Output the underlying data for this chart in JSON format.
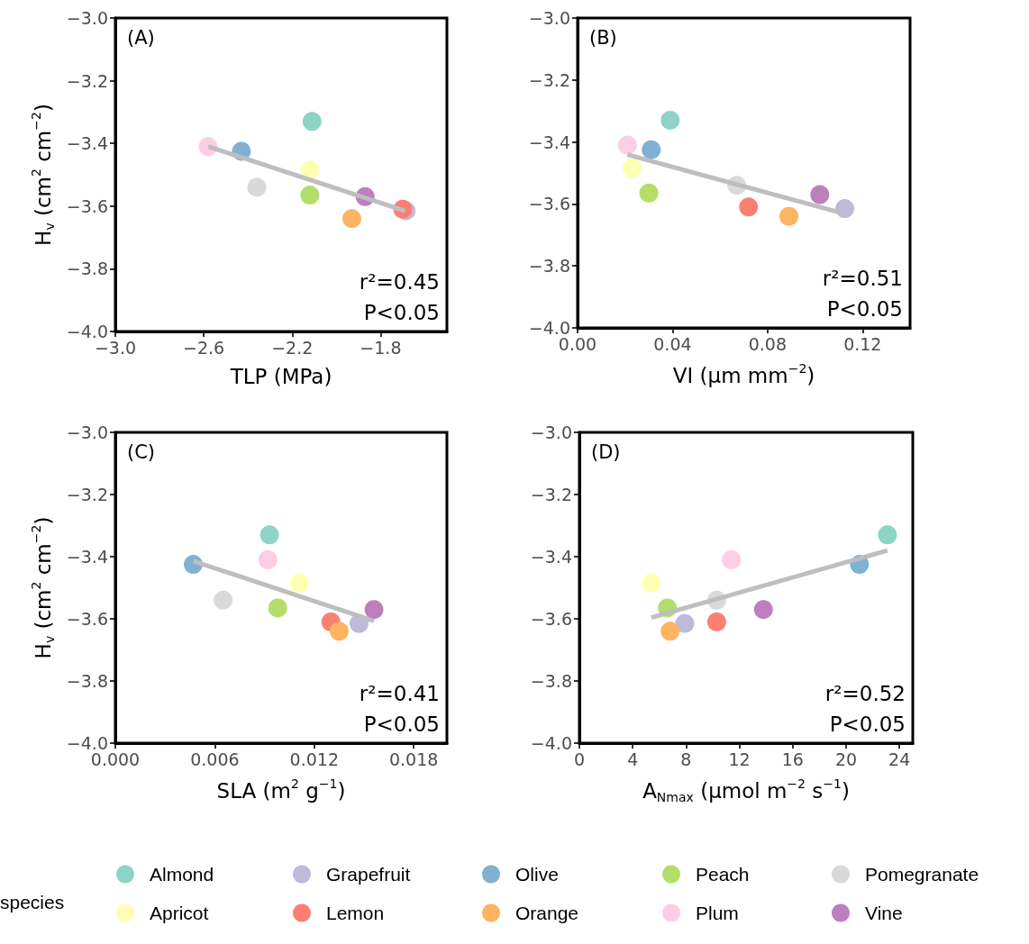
{
  "chart_data": [
    {
      "type": "scatter",
      "title": "(A)",
      "xlabel": "TLP (MPa)",
      "ylabel": "H$_{v}$ (cm$^{2}$ cm$^{−2}$)",
      "legend": "bottom",
      "legend_title": "species",
      "marker": "circle",
      "grid": false,
      "xlim": [
        -3.0,
        -1.5
      ],
      "xticks": [
        {
          "value": -3.0,
          "label": "−3.0"
        },
        {
          "value": -2.6,
          "label": "−2.6"
        },
        {
          "value": -2.2,
          "label": "−2.2"
        },
        {
          "value": -1.8,
          "label": "−1.8"
        }
      ],
      "ylim": [
        -4.0,
        -3.0
      ],
      "yticks": [
        {
          "value": -4.0,
          "label": "−4.0"
        },
        {
          "value": -3.8,
          "label": "−3.8"
        },
        {
          "value": -3.6,
          "label": "−3.6"
        },
        {
          "value": -3.4,
          "label": "−3.4"
        },
        {
          "value": -3.2,
          "label": "−3.2"
        },
        {
          "value": -3.0,
          "label": "−3.0"
        }
      ],
      "annotations": [
        "r²=0.45",
        "P<0.05"
      ],
      "series": [
        {
          "type": "line",
          "marker": "none",
          "color": "#bebebe",
          "x": [
            -2.58,
            -1.69
          ],
          "values": [
            -3.41,
            -3.615
          ]
        },
        {
          "name": "Almond",
          "color": "#8dd3c7",
          "x": [
            -2.11
          ],
          "values": [
            -3.33
          ]
        },
        {
          "name": "Apricot",
          "color": "#ffffb3",
          "x": [
            -2.12
          ],
          "values": [
            -3.485
          ]
        },
        {
          "name": "Grapefruit",
          "color": "#bebada",
          "x": [
            -1.685
          ],
          "values": [
            -3.615
          ]
        },
        {
          "name": "Lemon",
          "color": "#fb8072",
          "x": [
            -1.7
          ],
          "values": [
            -3.61
          ]
        },
        {
          "name": "Olive",
          "color": "#80b1d3",
          "x": [
            -2.43
          ],
          "values": [
            -3.425
          ]
        },
        {
          "name": "Orange",
          "color": "#fdb462",
          "x": [
            -1.93
          ],
          "values": [
            -3.64
          ]
        },
        {
          "name": "Peach",
          "color": "#b3de69",
          "x": [
            -2.12
          ],
          "values": [
            -3.565
          ]
        },
        {
          "name": "Plum",
          "color": "#fccde5",
          "x": [
            -2.58
          ],
          "values": [
            -3.41
          ]
        },
        {
          "name": "Pomegranate",
          "color": "#d9d9d9",
          "x": [
            -2.36
          ],
          "values": [
            -3.54
          ]
        },
        {
          "name": "Vine",
          "color": "#bc80bd",
          "x": [
            -1.87
          ],
          "values": [
            -3.57
          ]
        }
      ]
    },
    {
      "type": "scatter",
      "title": "(B)",
      "xlabel": "VI (μm mm$^{−2}$)",
      "marker": "circle",
      "grid": false,
      "xlim": [
        0,
        0.14
      ],
      "xticks": [
        {
          "value": 0,
          "label": "0.00"
        },
        0.04,
        0.08,
        0.12
      ],
      "ylim": [
        -4.0,
        -3.0
      ],
      "yticks": [
        {
          "value": -4.0,
          "label": "−4.0"
        },
        {
          "value": -3.8,
          "label": "−3.8"
        },
        {
          "value": -3.6,
          "label": "−3.6"
        },
        {
          "value": -3.4,
          "label": "−3.4"
        },
        {
          "value": -3.2,
          "label": "−3.2"
        },
        {
          "value": -3.0,
          "label": "−3.0"
        }
      ],
      "annotations": [
        "r²=0.51",
        "P<0.05"
      ],
      "series": [
        {
          "type": "line",
          "marker": "none",
          "color": "#bebebe",
          "x": [
            0.021,
            0.1125
          ],
          "values": [
            -3.441,
            -3.632
          ]
        },
        {
          "name": "Almond",
          "color": "#8dd3c7",
          "x": [
            0.039
          ],
          "values": [
            -3.33
          ]
        },
        {
          "name": "Apricot",
          "color": "#ffffb3",
          "x": [
            0.023
          ],
          "values": [
            -3.485
          ]
        },
        {
          "name": "Grapefruit",
          "color": "#bebada",
          "x": [
            0.1125
          ],
          "values": [
            -3.615
          ]
        },
        {
          "name": "Lemon",
          "color": "#fb8072",
          "x": [
            0.072
          ],
          "values": [
            -3.61
          ]
        },
        {
          "name": "Olive",
          "color": "#80b1d3",
          "x": [
            0.031
          ],
          "values": [
            -3.425
          ]
        },
        {
          "name": "Orange",
          "color": "#fdb462",
          "x": [
            0.089
          ],
          "values": [
            -3.64
          ]
        },
        {
          "name": "Peach",
          "color": "#b3de69",
          "x": [
            0.03
          ],
          "values": [
            -3.565
          ]
        },
        {
          "name": "Plum",
          "color": "#fccde5",
          "x": [
            0.021
          ],
          "values": [
            -3.41
          ]
        },
        {
          "name": "Pomegranate",
          "color": "#d9d9d9",
          "x": [
            0.067
          ],
          "values": [
            -3.54
          ]
        },
        {
          "name": "Vine",
          "color": "#bc80bd",
          "x": [
            0.102
          ],
          "values": [
            -3.57
          ]
        }
      ]
    },
    {
      "type": "scatter",
      "title": "(C)",
      "xlabel": "SLA (m$^{2}$ g$^{−1}$)",
      "ylabel": "H$_{v}$ (cm$^{2}$ cm$^{−2}$)",
      "marker": "circle",
      "grid": false,
      "xlim": [
        0,
        0.02
      ],
      "xticks": [
        {
          "value": 0,
          "label": "0.000"
        },
        0.006,
        0.012,
        0.018
      ],
      "ylim": [
        -4.0,
        -3.0
      ],
      "yticks": [
        {
          "value": -4.0,
          "label": "−4.0"
        },
        {
          "value": -3.8,
          "label": "−3.8"
        },
        {
          "value": -3.6,
          "label": "−3.6"
        },
        {
          "value": -3.4,
          "label": "−3.4"
        },
        {
          "value": -3.2,
          "label": "−3.2"
        },
        {
          "value": -3.0,
          "label": "−3.0"
        }
      ],
      "annotations": [
        "r²=0.41",
        "P<0.05"
      ],
      "series": [
        {
          "type": "line",
          "marker": "none",
          "color": "#bebebe",
          "x": [
            0.0047,
            0.0156
          ],
          "values": [
            -3.414,
            -3.607
          ]
        },
        {
          "name": "Almond",
          "color": "#8dd3c7",
          "x": [
            0.0093
          ],
          "values": [
            -3.33
          ]
        },
        {
          "name": "Apricot",
          "color": "#ffffb3",
          "x": [
            0.0111
          ],
          "values": [
            -3.485
          ]
        },
        {
          "name": "Grapefruit",
          "color": "#bebada",
          "x": [
            0.0147
          ],
          "values": [
            -3.615
          ]
        },
        {
          "name": "Lemon",
          "color": "#fb8072",
          "x": [
            0.013
          ],
          "values": [
            -3.61
          ]
        },
        {
          "name": "Olive",
          "color": "#80b1d3",
          "x": [
            0.0047
          ],
          "values": [
            -3.425
          ]
        },
        {
          "name": "Orange",
          "color": "#fdb462",
          "x": [
            0.0135
          ],
          "values": [
            -3.64
          ]
        },
        {
          "name": "Peach",
          "color": "#b3de69",
          "x": [
            0.0098
          ],
          "values": [
            -3.565
          ]
        },
        {
          "name": "Plum",
          "color": "#fccde5",
          "x": [
            0.0092
          ],
          "values": [
            -3.41
          ]
        },
        {
          "name": "Pomegranate",
          "color": "#d9d9d9",
          "x": [
            0.0065
          ],
          "values": [
            -3.54
          ]
        },
        {
          "name": "Vine",
          "color": "#bc80bd",
          "x": [
            0.0156
          ],
          "values": [
            -3.57
          ]
        }
      ]
    },
    {
      "type": "scatter",
      "title": "(D)",
      "xlabel": "A$_{Nmax}$ (μmol m$^{−2}$ s$^{−1}$)",
      "marker": "circle",
      "grid": false,
      "xlim": [
        0,
        25
      ],
      "xticks": [
        0,
        4,
        8,
        12,
        16,
        20,
        24
      ],
      "ylim": [
        -4.0,
        -3.0
      ],
      "yticks": [
        {
          "value": -4.0,
          "label": "−4.0"
        },
        {
          "value": -3.8,
          "label": "−3.8"
        },
        {
          "value": -3.6,
          "label": "−3.6"
        },
        {
          "value": -3.4,
          "label": "−3.4"
        },
        {
          "value": -3.2,
          "label": "−3.2"
        },
        {
          "value": -3.0,
          "label": "−3.0"
        }
      ],
      "annotations": [
        "r²=0.52",
        "P<0.05"
      ],
      "series": [
        {
          "type": "line",
          "marker": "none",
          "color": "#bebebe",
          "x": [
            5.4,
            23.1
          ],
          "values": [
            -3.596,
            -3.38
          ]
        },
        {
          "name": "Almond",
          "color": "#8dd3c7",
          "x": [
            23.1
          ],
          "values": [
            -3.33
          ]
        },
        {
          "name": "Apricot",
          "color": "#ffffb3",
          "x": [
            5.4
          ],
          "values": [
            -3.485
          ]
        },
        {
          "name": "Grapefruit",
          "color": "#bebada",
          "x": [
            7.9
          ],
          "values": [
            -3.615
          ]
        },
        {
          "name": "Lemon",
          "color": "#fb8072",
          "x": [
            10.3
          ],
          "values": [
            -3.61
          ]
        },
        {
          "name": "Olive",
          "color": "#80b1d3",
          "x": [
            21.0
          ],
          "values": [
            -3.425
          ]
        },
        {
          "name": "Orange",
          "color": "#fdb462",
          "x": [
            6.8
          ],
          "values": [
            -3.64
          ]
        },
        {
          "name": "Peach",
          "color": "#b3de69",
          "x": [
            6.6
          ],
          "values": [
            -3.565
          ]
        },
        {
          "name": "Plum",
          "color": "#fccde5",
          "x": [
            11.4
          ],
          "values": [
            -3.41
          ]
        },
        {
          "name": "Pomegranate",
          "color": "#d9d9d9",
          "x": [
            10.3
          ],
          "values": [
            -3.54
          ]
        },
        {
          "name": "Vine",
          "color": "#bc80bd",
          "x": [
            13.8
          ],
          "values": [
            -3.57
          ]
        }
      ]
    }
  ]
}
